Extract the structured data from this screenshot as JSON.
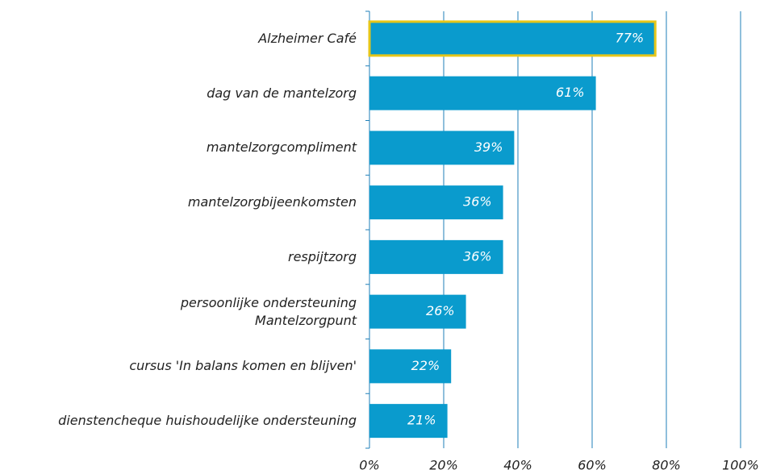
{
  "chart_data": {
    "type": "hbar",
    "categories": [
      "Alzheimer Café",
      "dag van de mantelzorg",
      "mantelzorgcompliment",
      "mantelzorgbijeenkomsten",
      "respijtzorg",
      "persoonlijke ondersteuning\nMantelzorgpunt",
      "cursus 'In balans komen en blijven'",
      "dienstencheque huishoudelijke ondersteuning"
    ],
    "values": [
      77,
      61,
      39,
      36,
      36,
      26,
      22,
      21
    ],
    "value_labels": [
      "77%",
      "61%",
      "39%",
      "36%",
      "36%",
      "26%",
      "22%",
      "21%"
    ],
    "color": "#0a9bcd",
    "highlight": {
      "index": 0,
      "color": "#e6c619"
    },
    "xlim": [
      0,
      100
    ],
    "xticks": [
      {
        "value": 0,
        "label": "0%"
      },
      {
        "value": 20,
        "label": "20%"
      },
      {
        "value": 40,
        "label": "40%"
      },
      {
        "value": 60,
        "label": "60%"
      },
      {
        "value": 80,
        "label": "80%"
      },
      {
        "value": 100,
        "label": "100%"
      }
    ],
    "grid": true,
    "grid_color": "#1f7fb8"
  }
}
